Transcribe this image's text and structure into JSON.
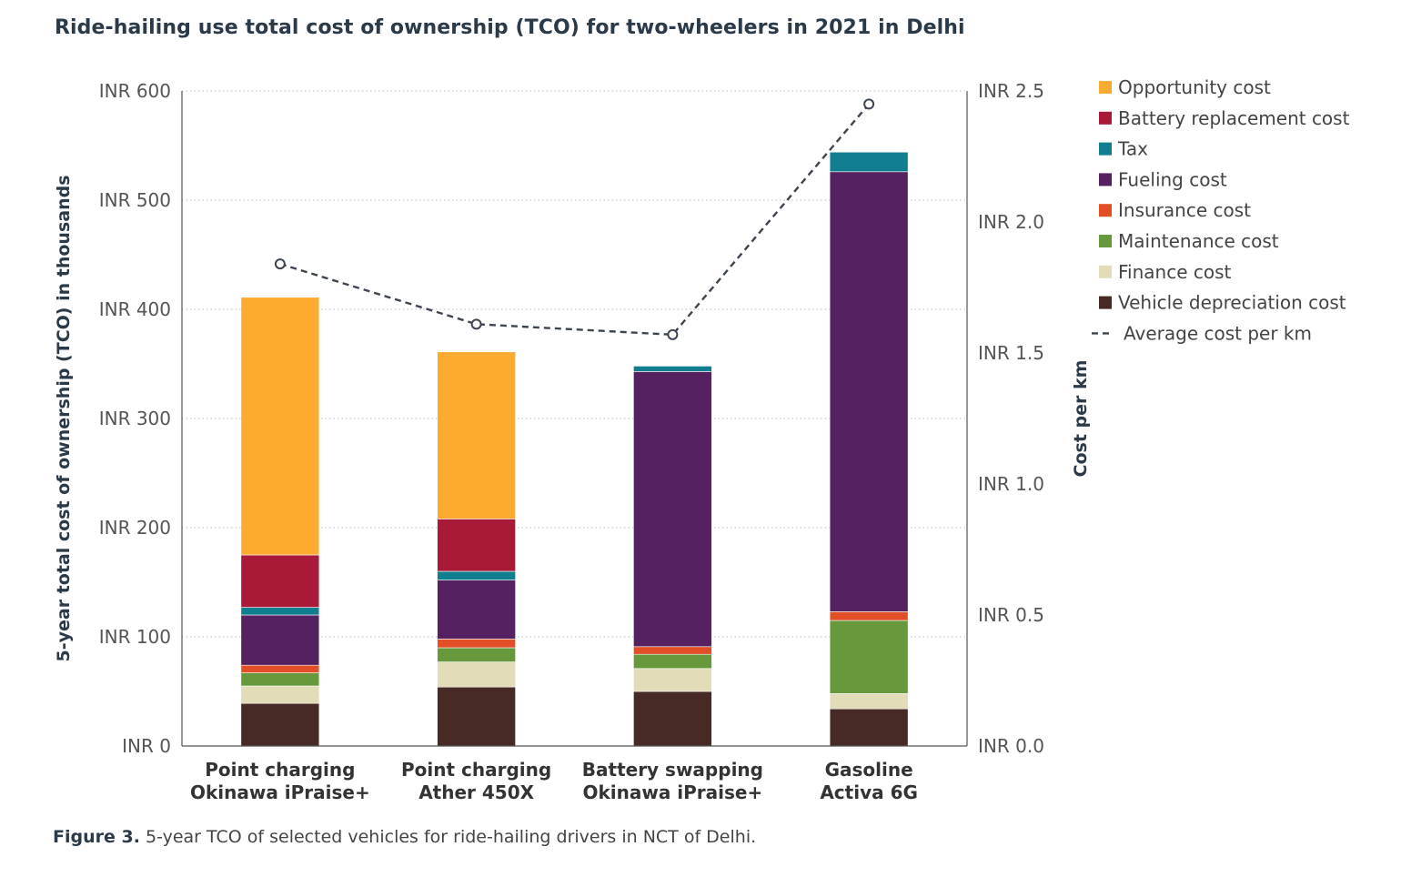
{
  "header": {
    "title": "Ride-hailing use total cost of ownership (TCO) for two-wheelers in 2021 in Delhi"
  },
  "caption": {
    "label": "Figure 3.",
    "text": "5-year TCO of selected vehicles for ride-hailing drivers in NCT of Delhi."
  },
  "chart_data": {
    "type": "bar",
    "stacked": true,
    "title": "Ride-hailing use total cost of ownership (TCO) for two-wheelers in 2021 in Delhi",
    "ylabel": "5-year total cost of ownership (TCO) in thousands",
    "y2label": "Cost per km",
    "ylim": [
      0,
      600
    ],
    "y2lim": [
      0,
      2.5
    ],
    "yticks": [
      "INR 0",
      "INR 100",
      "INR 200",
      "INR 300",
      "INR 400",
      "INR 500",
      "INR 600"
    ],
    "y2ticks": [
      "INR 0.0",
      "INR 0.5",
      "INR 1.0",
      "INR 1.5",
      "INR 2.0",
      "INR 2.5"
    ],
    "grid": true,
    "legend_position": "right",
    "categories": [
      [
        "Point charging",
        "Okinawa iPraise+"
      ],
      [
        "Point charging",
        "Ather 450X"
      ],
      [
        "Battery swapping",
        "Okinawa iPraise+"
      ],
      [
        "Gasoline",
        "Activa 6G"
      ]
    ],
    "series": [
      {
        "name": "Vehicle depreciation cost",
        "color": "#472a25",
        "values": [
          39,
          54,
          50,
          34
        ]
      },
      {
        "name": "Finance cost",
        "color": "#e2dcb8",
        "values": [
          16,
          23,
          21,
          14
        ]
      },
      {
        "name": "Maintenance cost",
        "color": "#67993c",
        "values": [
          12,
          13,
          13,
          67
        ]
      },
      {
        "name": "Insurance cost",
        "color": "#e24e26",
        "values": [
          7,
          8,
          7,
          8
        ]
      },
      {
        "name": "Fueling cost",
        "color": "#552161",
        "values": [
          46,
          54,
          252,
          403
        ]
      },
      {
        "name": "Tax",
        "color": "#107e8f",
        "values": [
          7,
          8,
          5,
          18
        ]
      },
      {
        "name": "Battery replacement cost",
        "color": "#a81a37",
        "values": [
          48,
          48,
          0,
          0
        ]
      },
      {
        "name": "Opportunity cost",
        "color": "#fdab30",
        "values": [
          236,
          153,
          0,
          0
        ]
      }
    ],
    "line_series": {
      "name": "Average cost per km",
      "color": "#3d4550",
      "axis": "secondary",
      "values": [
        1.84,
        1.61,
        1.57,
        2.45
      ]
    },
    "legend_order": [
      "Opportunity cost",
      "Battery replacement cost",
      "Tax",
      "Fueling cost",
      "Insurance cost",
      "Maintenance cost",
      "Finance cost",
      "Vehicle depreciation cost",
      "Average cost per km"
    ]
  }
}
